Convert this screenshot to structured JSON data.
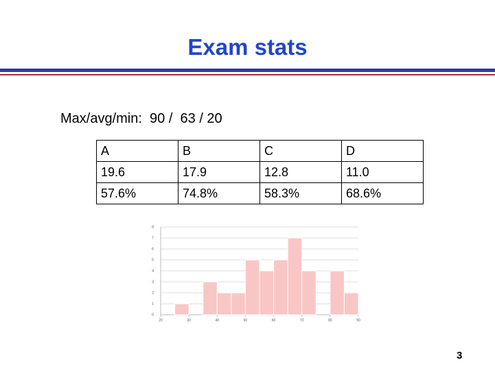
{
  "header": {
    "title": "Exam stats"
  },
  "summary": "Max/avg/min:  90 /  63 / 20",
  "table": {
    "rows": [
      [
        "A",
        "B",
        "C",
        "D"
      ],
      [
        "19.6",
        "17.9",
        "12.8",
        "11.0"
      ],
      [
        "57.6%",
        "74.8%",
        "58.3%",
        "68.6%"
      ]
    ]
  },
  "chart_data": {
    "type": "histogram",
    "bins": [
      20,
      25,
      30,
      35,
      40,
      45,
      50,
      55,
      60,
      65,
      70,
      75,
      80,
      85,
      90
    ],
    "values": [
      0,
      1,
      0,
      3,
      2,
      2,
      5,
      4,
      5,
      7,
      4,
      0,
      4,
      2
    ],
    "color": "#f9c6c6",
    "xlim": [
      20,
      90
    ],
    "xticks": [
      20,
      30,
      40,
      50,
      60,
      70,
      80,
      90
    ],
    "ylim": [
      0,
      8
    ],
    "yticks": [
      0,
      1,
      2,
      3,
      4,
      5,
      6,
      7,
      8
    ],
    "grid": true
  },
  "page_number": "3"
}
